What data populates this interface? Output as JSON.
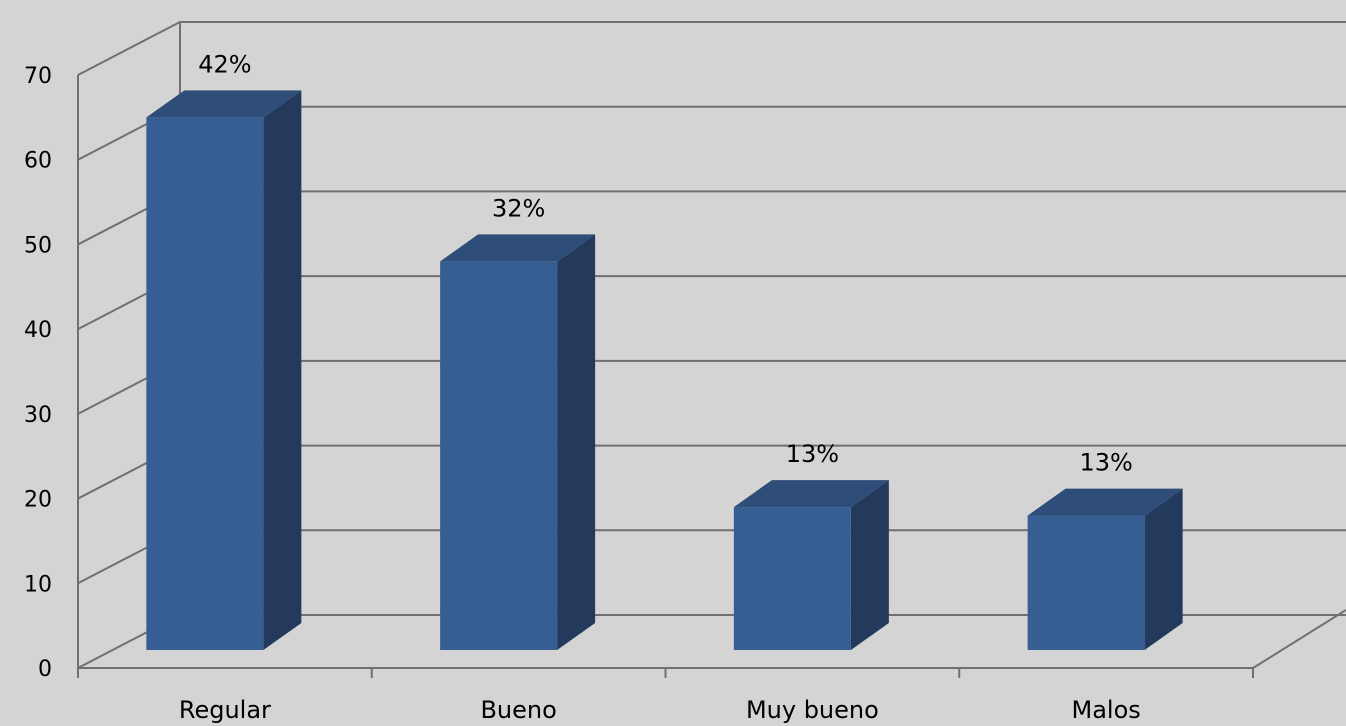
{
  "chart_data": {
    "type": "bar",
    "subtype": "3d-column",
    "categories": [
      "Regular",
      "Bueno",
      "Muy bueno",
      "Malos"
    ],
    "values": [
      67,
      50,
      21,
      20
    ],
    "data_labels": [
      "42%",
      "32%",
      "13%",
      "13%"
    ],
    "ylim": [
      0,
      70
    ],
    "y_ticks": [
      "0",
      "10",
      "20",
      "30",
      "40",
      "50",
      "60",
      "70"
    ],
    "grid": true,
    "legend": "none",
    "colors": {
      "background": "#d4d4d4",
      "bar_front": "#365e92",
      "bar_side": "#243a5c",
      "bar_top": "#2e4d78",
      "grid": "#707070"
    }
  }
}
